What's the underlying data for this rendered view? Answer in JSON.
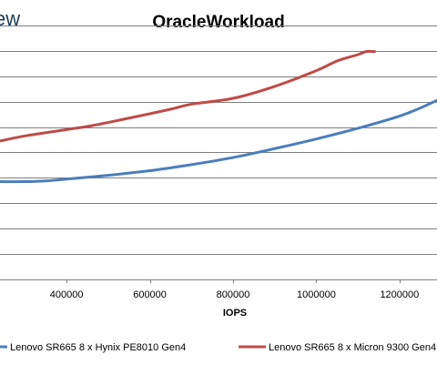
{
  "header": {
    "corner_text": "ew"
  },
  "chart_data": {
    "type": "line",
    "title": "OracleWorkload",
    "xlabel": "IOPS",
    "ylabel": "",
    "xlim": [
      240000,
      1290000
    ],
    "ylim": [
      0,
      1.1
    ],
    "x_ticks": [
      400000,
      600000,
      800000,
      1000000,
      1200000
    ],
    "x_tick_labels": [
      "400000",
      "600000",
      "800000",
      "1000000",
      "1200000"
    ],
    "y_gridlines": [
      0.1,
      0.2,
      0.3,
      0.4,
      0.5,
      0.6,
      0.7,
      0.8,
      0.9,
      1.0
    ],
    "grid": true,
    "legend_position": "bottom",
    "series": [
      {
        "name": "Lenovo SR665 8 x Hynix PE8010 Gen4",
        "color": "#4a7ebb",
        "points": [
          [
            240000,
            0.385
          ],
          [
            300000,
            0.385
          ],
          [
            350000,
            0.388
          ],
          [
            400000,
            0.395
          ],
          [
            500000,
            0.41
          ],
          [
            600000,
            0.428
          ],
          [
            700000,
            0.452
          ],
          [
            800000,
            0.48
          ],
          [
            900000,
            0.515
          ],
          [
            1000000,
            0.553
          ],
          [
            1100000,
            0.595
          ],
          [
            1200000,
            0.643
          ],
          [
            1250000,
            0.675
          ],
          [
            1290000,
            0.705
          ]
        ]
      },
      {
        "name": "Lenovo SR665 8 x Micron 9300 Gen4",
        "color": "#be4b48",
        "points": [
          [
            240000,
            0.545
          ],
          [
            300000,
            0.565
          ],
          [
            400000,
            0.59
          ],
          [
            460000,
            0.605
          ],
          [
            550000,
            0.635
          ],
          [
            650000,
            0.67
          ],
          [
            700000,
            0.69
          ],
          [
            800000,
            0.713
          ],
          [
            900000,
            0.76
          ],
          [
            1000000,
            0.822
          ],
          [
            1050000,
            0.86
          ],
          [
            1100000,
            0.885
          ],
          [
            1120000,
            0.897
          ],
          [
            1140000,
            0.897
          ]
        ]
      }
    ]
  }
}
